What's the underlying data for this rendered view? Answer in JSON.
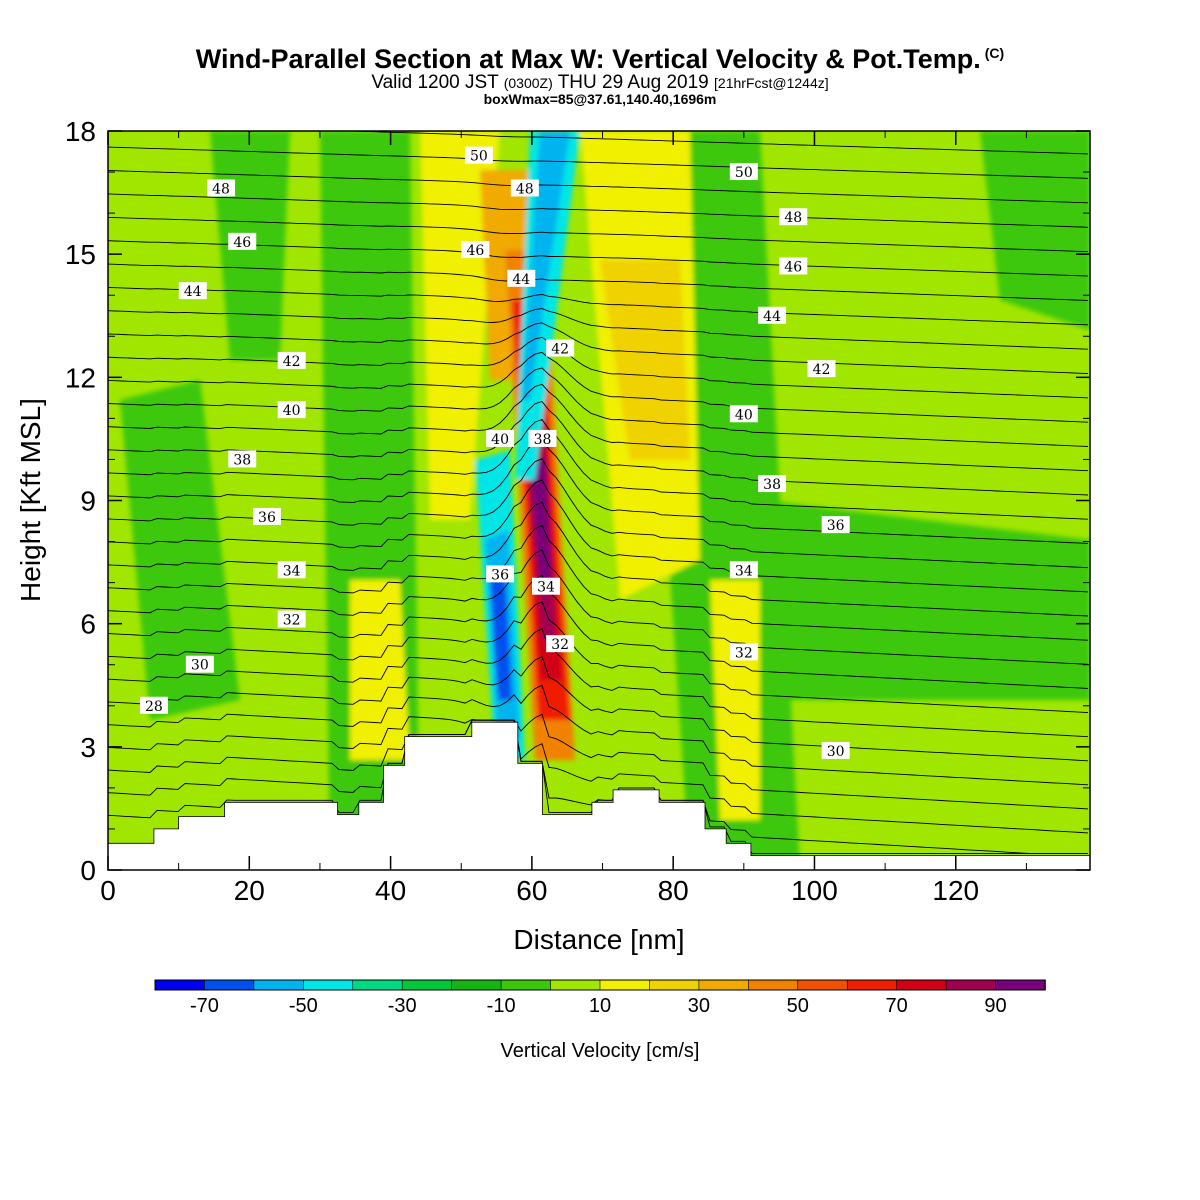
{
  "title": {
    "main": "Wind-Parallel Section at Max W: Vertical Velocity & Pot.Temp.",
    "copyright": "(C)",
    "valid_prefix": "Valid 1200 JST",
    "valid_zulu": "(0300Z)",
    "valid_date": "THU 29 Aug 2019",
    "forecast": "[21hrFcst@1244z]",
    "box_info": "boxWmax=85@37.61,140.40,1696m"
  },
  "chart_data": {
    "type": "heatmap",
    "xlabel": "Distance [nm]",
    "ylabel": "Height [Kft MSL]",
    "xlim": [
      0,
      139
    ],
    "ylim": [
      0,
      18
    ],
    "x_ticks": [
      0,
      20,
      40,
      60,
      80,
      100,
      120
    ],
    "y_ticks": [
      0,
      3,
      6,
      9,
      12,
      15,
      18
    ],
    "colorbar": {
      "label": "Vertical Velocity [cm/s]",
      "levels": [
        -80,
        -70,
        -60,
        -50,
        -40,
        -30,
        -20,
        -10,
        0,
        10,
        20,
        30,
        40,
        50,
        60,
        70,
        80,
        90,
        100
      ],
      "tick_labels": [
        "-70",
        "-50",
        "-30",
        "-10",
        "10",
        "30",
        "50",
        "70",
        "90"
      ],
      "colors": [
        "#0000f0",
        "#0050f0",
        "#00b4f0",
        "#00e6e6",
        "#00d882",
        "#00c83c",
        "#14b414",
        "#3cc80a",
        "#a0e600",
        "#f0f000",
        "#f0d200",
        "#f0aa00",
        "#f08200",
        "#f05000",
        "#f01e00",
        "#d20014",
        "#a00050",
        "#780078"
      ]
    },
    "theta_labels": [
      {
        "value": "28",
        "x": 6.5,
        "y": 4.0
      },
      {
        "value": "30",
        "x": 13,
        "y": 5.0
      },
      {
        "value": "32",
        "x": 26,
        "y": 6.1
      },
      {
        "value": "34",
        "x": 26,
        "y": 7.3
      },
      {
        "value": "36",
        "x": 22.5,
        "y": 8.6
      },
      {
        "value": "38",
        "x": 19,
        "y": 10.0
      },
      {
        "value": "40",
        "x": 26,
        "y": 11.2
      },
      {
        "value": "42",
        "x": 26,
        "y": 12.4
      },
      {
        "value": "44",
        "x": 12,
        "y": 14.1
      },
      {
        "value": "46",
        "x": 19,
        "y": 15.3
      },
      {
        "value": "48",
        "x": 16,
        "y": 16.6
      },
      {
        "value": "50",
        "x": 52.5,
        "y": 17.4
      },
      {
        "value": "48",
        "x": 59,
        "y": 16.6
      },
      {
        "value": "46",
        "x": 52,
        "y": 15.1
      },
      {
        "value": "44",
        "x": 58.5,
        "y": 14.4
      },
      {
        "value": "42",
        "x": 64,
        "y": 12.7
      },
      {
        "value": "40",
        "x": 55.5,
        "y": 10.5
      },
      {
        "value": "38",
        "x": 61.5,
        "y": 10.5
      },
      {
        "value": "36",
        "x": 55.5,
        "y": 7.2
      },
      {
        "value": "34",
        "x": 62,
        "y": 6.9
      },
      {
        "value": "32",
        "x": 64,
        "y": 5.5
      },
      {
        "value": "50",
        "x": 90,
        "y": 17.0
      },
      {
        "value": "48",
        "x": 97,
        "y": 15.9
      },
      {
        "value": "46",
        "x": 97,
        "y": 14.7
      },
      {
        "value": "44",
        "x": 94,
        "y": 13.5
      },
      {
        "value": "42",
        "x": 101,
        "y": 12.2
      },
      {
        "value": "40",
        "x": 90,
        "y": 11.1
      },
      {
        "value": "38",
        "x": 94,
        "y": 9.4
      },
      {
        "value": "36",
        "x": 103,
        "y": 8.4
      },
      {
        "value": "34",
        "x": 90,
        "y": 7.3
      },
      {
        "value": "32",
        "x": 90,
        "y": 5.3
      },
      {
        "value": "30",
        "x": 103,
        "y": 2.9
      }
    ],
    "terrain": [
      [
        0,
        0.65
      ],
      [
        6.5,
        0.65
      ],
      [
        6.5,
        1.0
      ],
      [
        10,
        1.0
      ],
      [
        10,
        1.3
      ],
      [
        16.5,
        1.3
      ],
      [
        16.5,
        1.65
      ],
      [
        32.5,
        1.65
      ],
      [
        32.5,
        1.35
      ],
      [
        35.5,
        1.35
      ],
      [
        35.5,
        1.65
      ],
      [
        39,
        1.65
      ],
      [
        39,
        2.55
      ],
      [
        42,
        2.55
      ],
      [
        42,
        3.25
      ],
      [
        51.5,
        3.25
      ],
      [
        51.5,
        3.6
      ],
      [
        58,
        3.6
      ],
      [
        58,
        2.6
      ],
      [
        61.5,
        2.6
      ],
      [
        61.5,
        1.35
      ],
      [
        68.5,
        1.35
      ],
      [
        68.5,
        1.65
      ],
      [
        71.5,
        1.65
      ],
      [
        71.5,
        1.95
      ],
      [
        78,
        1.95
      ],
      [
        78,
        1.65
      ],
      [
        84.5,
        1.65
      ],
      [
        84.5,
        1.0
      ],
      [
        87.5,
        1.0
      ],
      [
        87.5,
        0.65
      ],
      [
        91,
        0.65
      ],
      [
        91,
        0.35
      ],
      [
        139,
        0.35
      ]
    ]
  }
}
